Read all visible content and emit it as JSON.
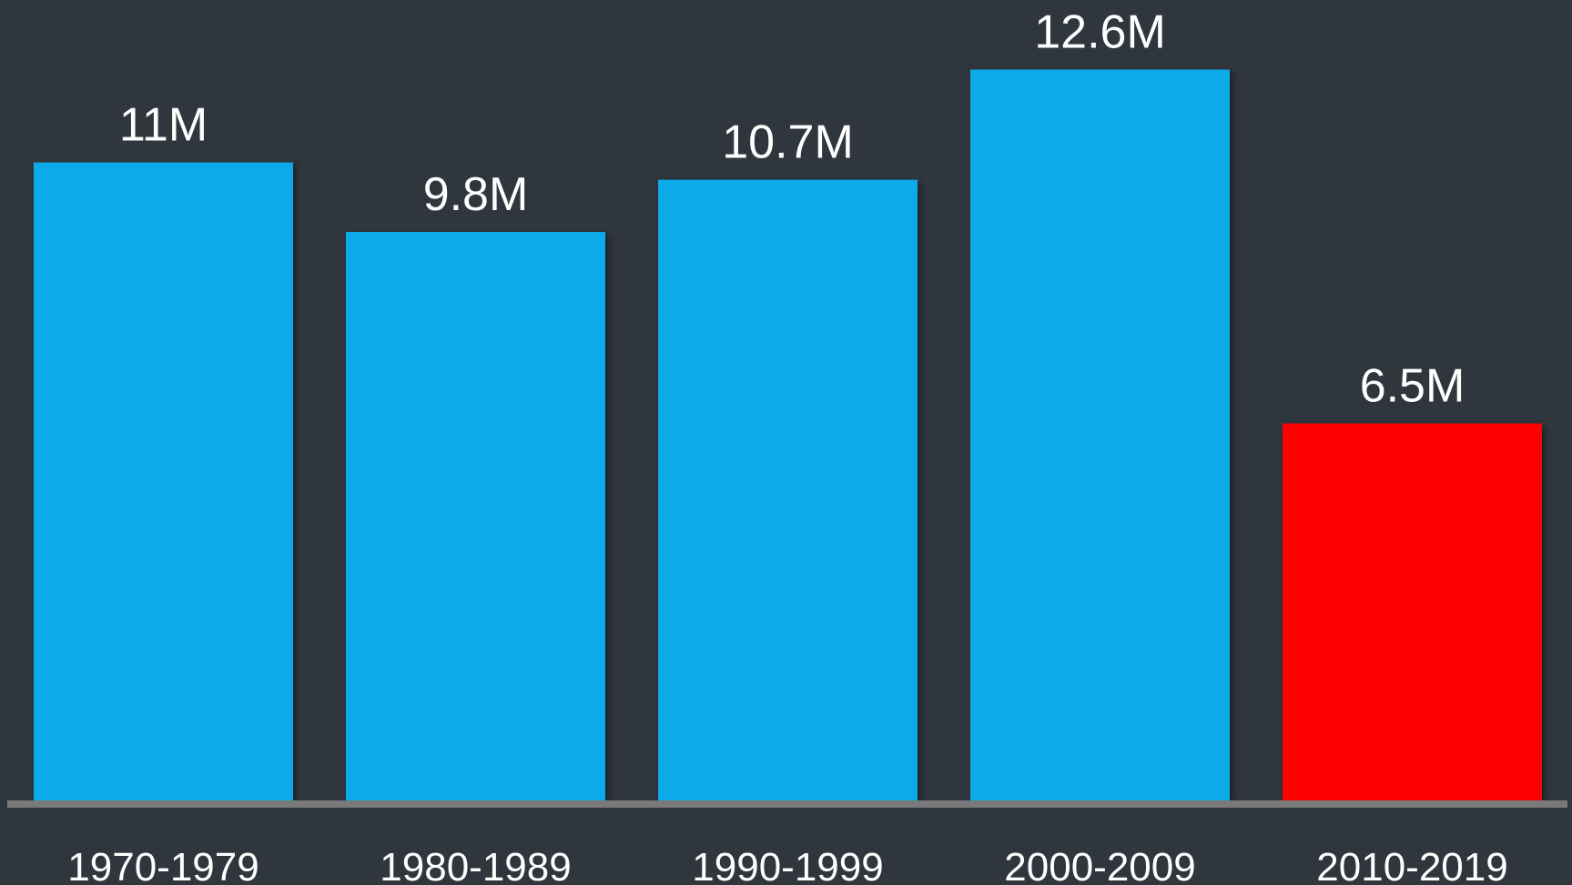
{
  "chart_data": {
    "type": "bar",
    "categories": [
      "1970-1979",
      "1980-1989",
      "1990-1999",
      "2000-2009",
      "2010-2019"
    ],
    "values": [
      11,
      9.8,
      10.7,
      12.6,
      6.5
    ],
    "data_labels": [
      "11M",
      "9.8M",
      "10.7M",
      "12.6M",
      "6.5M"
    ],
    "bar_colors": [
      "#0eaaea",
      "#0eaaea",
      "#0eaaea",
      "#0eaaea",
      "#ff0000"
    ],
    "ylim": [
      0,
      13.8
    ],
    "grid": false,
    "legend": "none",
    "title": "",
    "xlabel": "",
    "ylabel": ""
  },
  "colors": {
    "background": "#30363e",
    "axis": "#7a7a7a",
    "text": "#ffffff"
  }
}
